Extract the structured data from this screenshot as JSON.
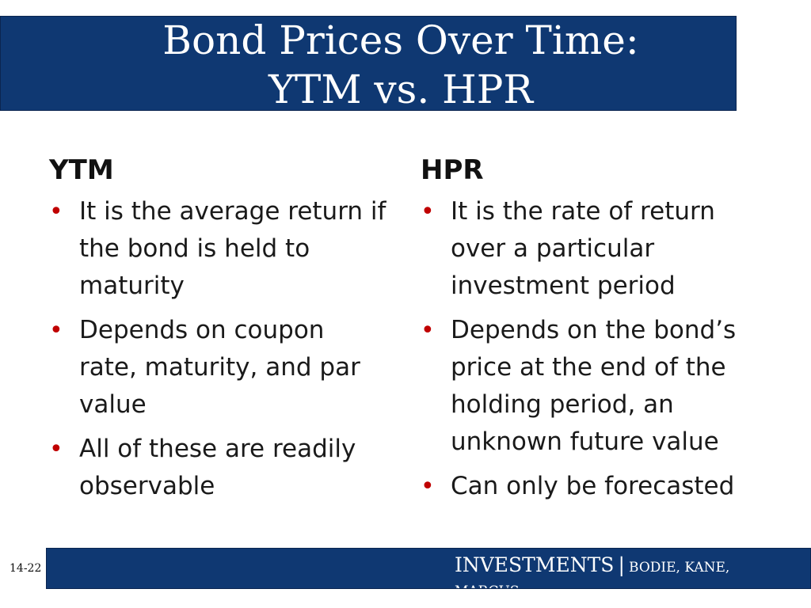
{
  "slide": {
    "title_line1": "Bond Prices Over Time:",
    "title_line2": "YTM vs. HPR",
    "left": {
      "heading": "YTM",
      "bullets": [
        "It is the average return if the bond is held to maturity",
        "Depends on coupon rate, maturity, and par value",
        "All of these are readily observable"
      ]
    },
    "right": {
      "heading": "HPR",
      "bullets": [
        "It is the rate of return over a particular investment period",
        "Depends on the bond’s price at the end of the holding period, an unknown future value",
        "Can only be forecasted"
      ]
    },
    "footer": {
      "main": "INVESTMENTS",
      "separator": "|",
      "authors": "BODIE, KANE, MARCUS"
    },
    "slide_number": "14-22",
    "colors": {
      "bar": "#0f3872",
      "bullet": "#c00000"
    }
  }
}
